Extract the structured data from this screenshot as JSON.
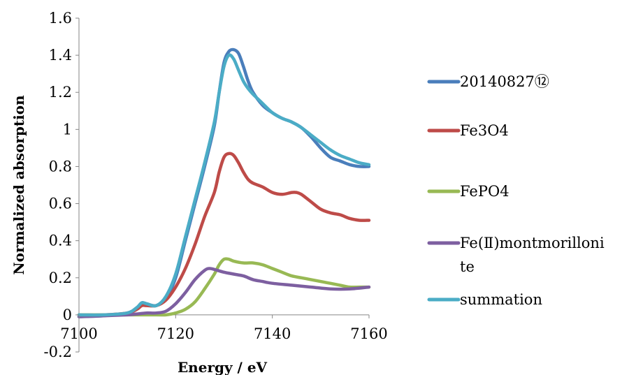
{
  "chart_data": {
    "type": "line",
    "title": "",
    "xlabel": "Energy / eV",
    "ylabel": "Normalized absorption",
    "xlim": [
      7100,
      7160
    ],
    "ylim": [
      -0.2,
      1.6
    ],
    "xticks": [
      7100,
      7120,
      7140,
      7160
    ],
    "yticks": [
      -0.2,
      0,
      0.2,
      0.4,
      0.6,
      0.8,
      1,
      1.2,
      1.4,
      1.6
    ],
    "ytick_labels": [
      "-0.2",
      "0",
      "0.2",
      "0.4",
      "0.6",
      "0.8",
      "1",
      "1.2",
      "1.4",
      "1.6"
    ],
    "grid": false,
    "legend_position": "right",
    "series": [
      {
        "name": "20140827⑫",
        "color": "#4a7ebb",
        "points": [
          [
            7100,
            -0.01
          ],
          [
            7105,
            -0.005
          ],
          [
            7110,
            0.01
          ],
          [
            7112,
            0.04
          ],
          [
            7113,
            0.065
          ],
          [
            7114,
            0.06
          ],
          [
            7116,
            0.05
          ],
          [
            7118,
            0.09
          ],
          [
            7120,
            0.2
          ],
          [
            7122,
            0.4
          ],
          [
            7124,
            0.6
          ],
          [
            7126,
            0.8
          ],
          [
            7128,
            1.02
          ],
          [
            7129,
            1.2
          ],
          [
            7130,
            1.36
          ],
          [
            7131,
            1.42
          ],
          [
            7132,
            1.43
          ],
          [
            7133,
            1.41
          ],
          [
            7134,
            1.34
          ],
          [
            7135,
            1.26
          ],
          [
            7136,
            1.2
          ],
          [
            7138,
            1.13
          ],
          [
            7140,
            1.09
          ],
          [
            7142,
            1.06
          ],
          [
            7144,
            1.04
          ],
          [
            7146,
            1.01
          ],
          [
            7148,
            0.96
          ],
          [
            7150,
            0.9
          ],
          [
            7152,
            0.85
          ],
          [
            7154,
            0.83
          ],
          [
            7156,
            0.81
          ],
          [
            7158,
            0.8
          ],
          [
            7160,
            0.8
          ]
        ]
      },
      {
        "name": "Fe3O4",
        "color": "#be4b48",
        "points": [
          [
            7100,
            0
          ],
          [
            7105,
            0
          ],
          [
            7110,
            0.01
          ],
          [
            7112,
            0.03
          ],
          [
            7113,
            0.05
          ],
          [
            7114,
            0.05
          ],
          [
            7116,
            0.05
          ],
          [
            7118,
            0.08
          ],
          [
            7120,
            0.15
          ],
          [
            7122,
            0.25
          ],
          [
            7124,
            0.38
          ],
          [
            7126,
            0.53
          ],
          [
            7128,
            0.66
          ],
          [
            7129,
            0.77
          ],
          [
            7130,
            0.85
          ],
          [
            7131,
            0.87
          ],
          [
            7132,
            0.86
          ],
          [
            7133,
            0.82
          ],
          [
            7134,
            0.77
          ],
          [
            7135,
            0.73
          ],
          [
            7136,
            0.71
          ],
          [
            7138,
            0.69
          ],
          [
            7140,
            0.66
          ],
          [
            7142,
            0.65
          ],
          [
            7144,
            0.66
          ],
          [
            7145,
            0.66
          ],
          [
            7146,
            0.65
          ],
          [
            7148,
            0.61
          ],
          [
            7150,
            0.57
          ],
          [
            7152,
            0.55
          ],
          [
            7154,
            0.54
          ],
          [
            7156,
            0.52
          ],
          [
            7158,
            0.51
          ],
          [
            7160,
            0.51
          ]
        ]
      },
      {
        "name": "FePO4",
        "color": "#98b954",
        "points": [
          [
            7100,
            0
          ],
          [
            7110,
            0
          ],
          [
            7116,
            0
          ],
          [
            7118,
            0
          ],
          [
            7120,
            0.01
          ],
          [
            7122,
            0.03
          ],
          [
            7124,
            0.07
          ],
          [
            7126,
            0.14
          ],
          [
            7128,
            0.22
          ],
          [
            7129,
            0.27
          ],
          [
            7130,
            0.3
          ],
          [
            7131,
            0.3
          ],
          [
            7132,
            0.29
          ],
          [
            7134,
            0.28
          ],
          [
            7136,
            0.28
          ],
          [
            7138,
            0.27
          ],
          [
            7140,
            0.25
          ],
          [
            7142,
            0.23
          ],
          [
            7144,
            0.21
          ],
          [
            7146,
            0.2
          ],
          [
            7148,
            0.19
          ],
          [
            7150,
            0.18
          ],
          [
            7152,
            0.17
          ],
          [
            7154,
            0.16
          ],
          [
            7156,
            0.15
          ],
          [
            7158,
            0.15
          ],
          [
            7160,
            0.15
          ]
        ]
      },
      {
        "name": "Fe(Ⅱ)montmorillonite",
        "color": "#7d5fa0",
        "points": [
          [
            7100,
            -0.01
          ],
          [
            7105,
            -0.005
          ],
          [
            7110,
            0
          ],
          [
            7112,
            0.005
          ],
          [
            7114,
            0.01
          ],
          [
            7116,
            0.01
          ],
          [
            7118,
            0.02
          ],
          [
            7120,
            0.06
          ],
          [
            7122,
            0.12
          ],
          [
            7124,
            0.19
          ],
          [
            7126,
            0.24
          ],
          [
            7127,
            0.25
          ],
          [
            7128,
            0.245
          ],
          [
            7130,
            0.23
          ],
          [
            7132,
            0.22
          ],
          [
            7134,
            0.21
          ],
          [
            7136,
            0.19
          ],
          [
            7138,
            0.18
          ],
          [
            7140,
            0.17
          ],
          [
            7144,
            0.16
          ],
          [
            7148,
            0.15
          ],
          [
            7152,
            0.14
          ],
          [
            7156,
            0.14
          ],
          [
            7160,
            0.15
          ]
        ]
      },
      {
        "name": "summation",
        "color": "#4bacc6",
        "points": [
          [
            7100,
            0
          ],
          [
            7105,
            0
          ],
          [
            7110,
            0.01
          ],
          [
            7112,
            0.04
          ],
          [
            7113,
            0.065
          ],
          [
            7114,
            0.06
          ],
          [
            7116,
            0.05
          ],
          [
            7118,
            0.1
          ],
          [
            7120,
            0.22
          ],
          [
            7122,
            0.42
          ],
          [
            7124,
            0.62
          ],
          [
            7126,
            0.82
          ],
          [
            7128,
            1.04
          ],
          [
            7129,
            1.2
          ],
          [
            7130,
            1.34
          ],
          [
            7131,
            1.4
          ],
          [
            7132,
            1.38
          ],
          [
            7133,
            1.32
          ],
          [
            7134,
            1.26
          ],
          [
            7135,
            1.22
          ],
          [
            7136,
            1.19
          ],
          [
            7138,
            1.14
          ],
          [
            7140,
            1.09
          ],
          [
            7142,
            1.06
          ],
          [
            7144,
            1.04
          ],
          [
            7146,
            1.01
          ],
          [
            7148,
            0.97
          ],
          [
            7150,
            0.93
          ],
          [
            7152,
            0.89
          ],
          [
            7154,
            0.86
          ],
          [
            7156,
            0.84
          ],
          [
            7158,
            0.82
          ],
          [
            7160,
            0.81
          ]
        ]
      }
    ]
  },
  "legend": {
    "labels": [
      "20140827⑫",
      "Fe3O4",
      "FePO4",
      "Fe(Ⅱ)montmorilloni",
      "te",
      "summation"
    ]
  }
}
